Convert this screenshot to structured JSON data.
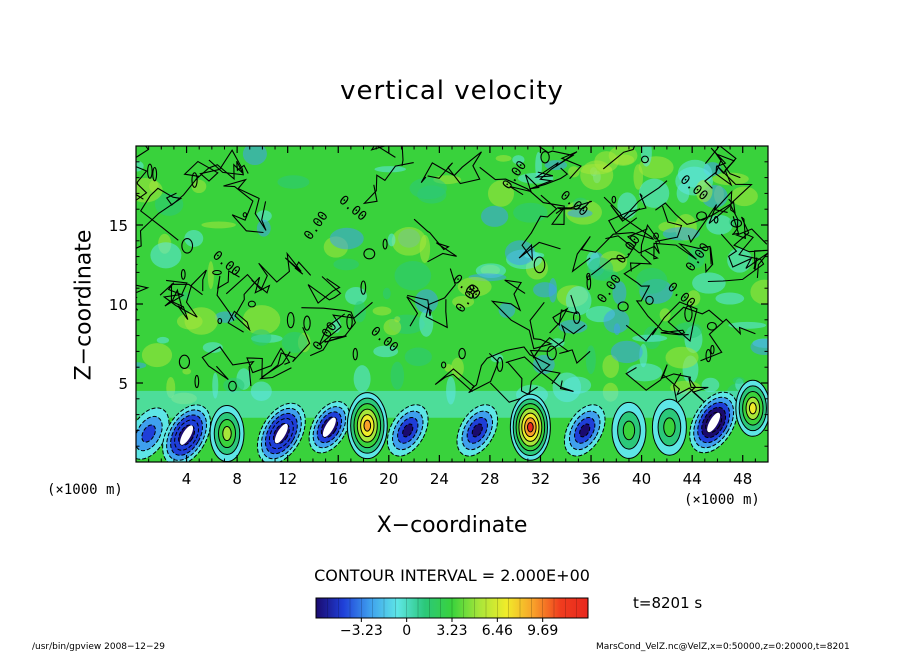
{
  "chart_data": {
    "type": "heatmap",
    "title": "vertical velocity",
    "xlabel": "X−coordinate",
    "ylabel": "Z−coordinate",
    "x_unit_label": "(×1000 m)",
    "x_unit_label_right": "(×1000 m)",
    "xlim": [
      0,
      50
    ],
    "ylim": [
      0,
      20
    ],
    "x_ticks": [
      4,
      8,
      12,
      16,
      20,
      24,
      28,
      32,
      36,
      40,
      44,
      48
    ],
    "y_ticks": [
      5,
      10,
      15
    ],
    "contour_interval_label": "CONTOUR INTERVAL = 2.000E+00",
    "contour_line_label": "0.00",
    "time_label": "t=8201 s",
    "colorbar": {
      "range": [
        -6.46,
        12.92
      ],
      "tick_values": [
        -3.23,
        0,
        3.23,
        6.46,
        9.69
      ],
      "tick_labels": [
        "−3.23",
        "0",
        "3.23",
        "6.46",
        "9.69"
      ],
      "colors": [
        "#1a0a6e",
        "#1f3fd8",
        "#3fa0ee",
        "#5ee6e6",
        "#2bc87a",
        "#39d23c",
        "#a8e63a",
        "#f0ec2a",
        "#f8a02a",
        "#f03c1e",
        "#e8281e"
      ]
    },
    "near_surface_cells": [
      {
        "x": 1.0,
        "z": 1.8,
        "w": -4.0
      },
      {
        "x": 4.0,
        "z": 1.7,
        "w": -9.0
      },
      {
        "x": 7.2,
        "z": 1.8,
        "w": 5.5
      },
      {
        "x": 11.5,
        "z": 1.8,
        "w": -9.0
      },
      {
        "x": 15.3,
        "z": 2.2,
        "w": -8.0
      },
      {
        "x": 18.3,
        "z": 2.3,
        "w": 9.0
      },
      {
        "x": 21.5,
        "z": 2.0,
        "w": -5.5
      },
      {
        "x": 27.0,
        "z": 2.0,
        "w": -6.0
      },
      {
        "x": 31.2,
        "z": 2.2,
        "w": 12.0
      },
      {
        "x": 35.5,
        "z": 2.0,
        "w": -6.0
      },
      {
        "x": 39.0,
        "z": 2.0,
        "w": 3.5
      },
      {
        "x": 42.2,
        "z": 2.2,
        "w": 3.0
      },
      {
        "x": 45.7,
        "z": 2.5,
        "w": -10.0
      },
      {
        "x": 48.8,
        "z": 3.4,
        "w": 8.0
      }
    ]
  },
  "footer": {
    "left": "/usr/bin/gpview   2008−12−29",
    "right": "MarsCond_VelZ.nc@VelZ,x=0:50000,z=0:20000,t=8201"
  }
}
